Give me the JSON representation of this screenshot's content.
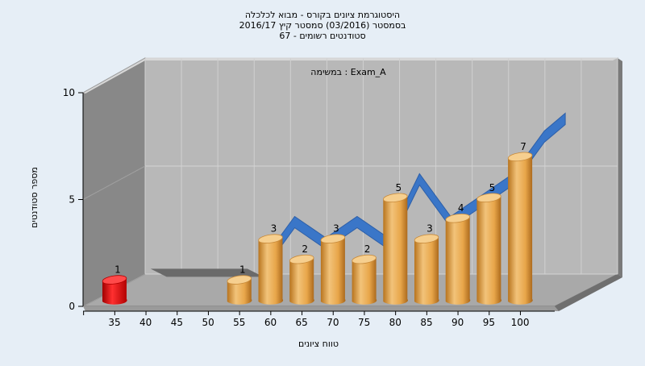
{
  "chart_data": {
    "type": "bar",
    "title_lines": [
      "היסטוגרמת ציונים בקורס - מבוא לכלכלה",
      "בסמסטר  (03/2016)  סמסטר קיץ 2016/17",
      "סטודנטים רשומים - 67"
    ],
    "annotation": "במשימה : Exam_A",
    "xlabel": "טווח ציונים",
    "ylabel": "מספר סטודנטים",
    "categories": [
      "35",
      "40",
      "45",
      "50",
      "55",
      "60",
      "65",
      "70",
      "75",
      "80",
      "85",
      "90",
      "95",
      "100"
    ],
    "values": [
      1,
      0,
      0,
      0,
      1,
      3,
      2,
      3,
      2,
      5,
      3,
      4,
      5,
      7
    ],
    "ylim": [
      0,
      10
    ],
    "yticks": [
      "0",
      "5",
      "10"
    ],
    "highlight_category": "35",
    "colors": {
      "bar": "#e8a64a",
      "highlight_bar": "#e01010",
      "ribbon": "#3a76c8",
      "floor": "#a9a9a9",
      "back_wall": "#b8b8b8",
      "side_wall": "#888888"
    }
  }
}
